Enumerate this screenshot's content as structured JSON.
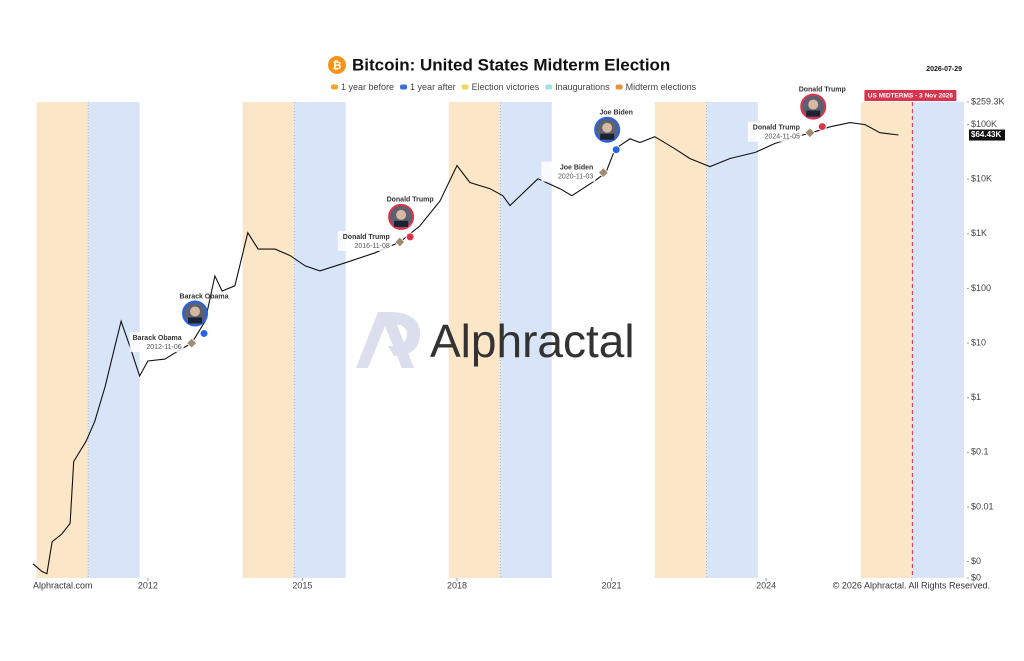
{
  "chart_data": {
    "type": "line",
    "scale": "log",
    "title": "Bitcoin: United States Midterm Election",
    "date": "2026-07-29",
    "legend": [
      {
        "name": "1 year before",
        "color": "#f5a623"
      },
      {
        "name": "1 year after",
        "color": "#3b6fd8"
      },
      {
        "name": "Election victories",
        "color": "#f2d65c"
      },
      {
        "name": "Inaugurations",
        "color": "#9fe0e8"
      },
      {
        "name": "Midterm elections",
        "color": "#e8913a"
      }
    ],
    "band_colors": {
      "before": "#fbe6c8",
      "after": "#d8e4f8"
    },
    "midterms": [
      2010.84,
      2014.84,
      2018.84,
      2022.84,
      2026.84
    ],
    "next_midterm_label": "US MIDTERMS - 3 Nov 2026",
    "x": [
      2009.77,
      2009.94,
      2010.04,
      2010.14,
      2010.33,
      2010.49,
      2010.56,
      2010.8,
      2010.97,
      2011.17,
      2011.36,
      2011.48,
      2011.65,
      2011.84,
      2012.0,
      2012.33,
      2012.58,
      2012.85,
      2013.11,
      2013.3,
      2013.44,
      2013.69,
      2013.94,
      2014.14,
      2014.47,
      2014.76,
      2015.05,
      2015.34,
      2015.83,
      2016.41,
      2016.89,
      2017.28,
      2017.67,
      2018.0,
      2018.25,
      2018.64,
      2018.89,
      2019.03,
      2019.57,
      2020.0,
      2020.23,
      2020.68,
      2020.89,
      2021.07,
      2021.36,
      2021.55,
      2021.84,
      2022.23,
      2022.52,
      2022.91,
      2023.3,
      2023.79,
      2024.17,
      2024.66,
      2024.89,
      2025.24,
      2025.63,
      2025.92,
      2026.21,
      2026.57
    ],
    "values": [
      0.00091,
      0.00066,
      0.0006,
      0.0023,
      0.0032,
      0.005,
      0.068,
      0.16,
      0.37,
      1.6,
      8.7,
      25,
      8.7,
      2.5,
      4.7,
      5.1,
      7.1,
      10,
      25,
      170,
      90,
      112,
      1050,
      525,
      525,
      400,
      260,
      210,
      295,
      450,
      710,
      1400,
      4000,
      17800,
      8700,
      6700,
      5000,
      3300,
      10200,
      6700,
      5000,
      9400,
      13200,
      36000,
      55000,
      47000,
      60000,
      36000,
      24000,
      17000,
      24000,
      31000,
      45000,
      63000,
      71000,
      91000,
      109000,
      100000,
      71000,
      64430
    ],
    "color": "#111111",
    "price_tag": {
      "value": 64430,
      "label": "$64.43K"
    },
    "elections": [
      {
        "name": "Barack Obama",
        "date": "2012-11-06",
        "x": 2012.85,
        "price": 10
      },
      {
        "name": "Donald Trump",
        "date": "2016-11-08",
        "x": 2016.89,
        "price": 710
      },
      {
        "name": "Joe Biden",
        "date": "2020-11-03",
        "x": 2020.84,
        "price": 13200
      },
      {
        "name": "Donald Trump",
        "date": "2024-11-05",
        "x": 2024.85,
        "price": 71000
      }
    ],
    "inaugurations": [
      {
        "name": "Barack Obama",
        "x": 2013.09,
        "price": 15,
        "color": "#2563eb"
      },
      {
        "name": "Donald Trump",
        "x": 2017.09,
        "price": 880,
        "color": "#e0334a"
      },
      {
        "name": "Joe Biden",
        "x": 2021.09,
        "price": 34700,
        "color": "#2563eb"
      },
      {
        "name": "Donald Trump",
        "x": 2025.09,
        "price": 92000,
        "color": "#e0334a"
      }
    ],
    "xlim": [
      2009.77,
      2027.9
    ],
    "xticks": [
      2012,
      2015,
      2018,
      2021,
      2024
    ],
    "ylim": [
      0.0005,
      259300
    ],
    "yticks": [
      {
        "value": 259300,
        "label": "$259.3K"
      },
      {
        "value": 100000,
        "label": "$100K"
      },
      {
        "value": 10000,
        "label": "$10K"
      },
      {
        "value": 1000,
        "label": "$1K"
      },
      {
        "value": 100,
        "label": "$100"
      },
      {
        "value": 10,
        "label": "$10"
      },
      {
        "value": 1,
        "label": "$1"
      },
      {
        "value": 0.1,
        "label": "$0.1"
      },
      {
        "value": 0.01,
        "label": "$0.01"
      },
      {
        "value": 0.001,
        "label": "$0"
      },
      {
        "value": 0.0005,
        "label": "$0"
      }
    ],
    "watermark": "Alphractal",
    "source": "Alphractal.com",
    "copyright": "© 2026 Alphractal. All Rights Reserved."
  }
}
